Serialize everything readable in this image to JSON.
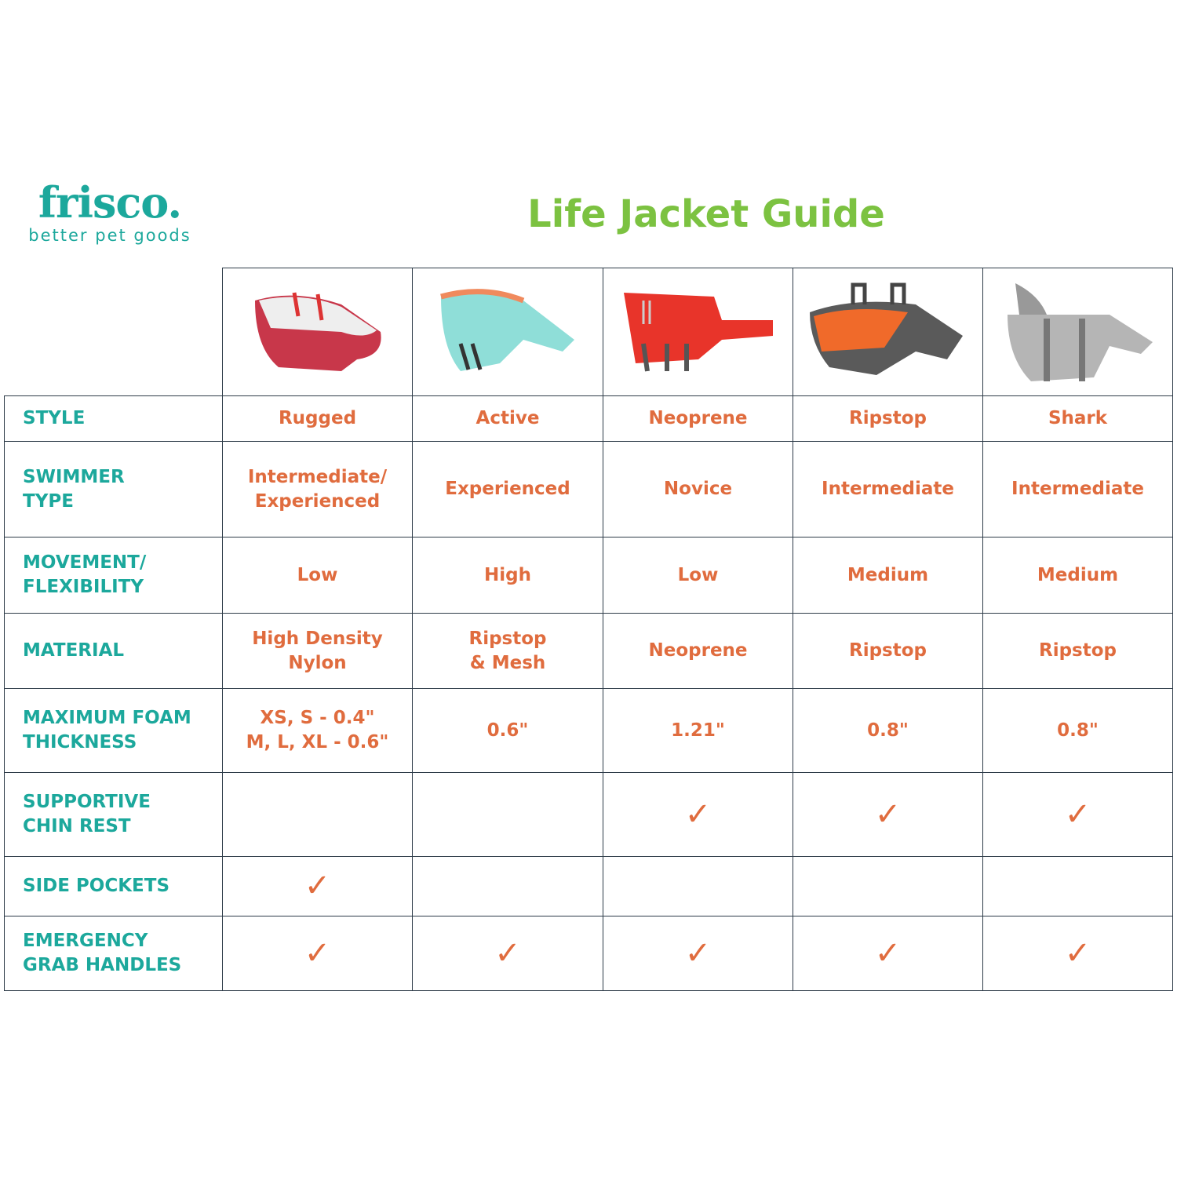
{
  "brand": {
    "name": "frisco.",
    "tagline": "better pet goods"
  },
  "title": "Life Jacket Guide",
  "colors": {
    "label": "#1ca89c",
    "value": "#e06c3e",
    "title": "#7cc241",
    "border": "#2d3b48"
  },
  "products": [
    {
      "image": "red-white-life-jacket",
      "style": "Rugged",
      "swimmer_type": "Intermediate/ Experienced",
      "movement": "Low",
      "material": "High Density Nylon",
      "foam": "XS, S - 0.4\" M, L, XL - 0.6\"",
      "chin_rest": "",
      "side_pockets": "✓",
      "grab_handles": "✓"
    },
    {
      "image": "aqua-life-jacket",
      "style": "Active",
      "swimmer_type": "Experienced",
      "movement": "High",
      "material": "Ripstop & Mesh",
      "foam": "0.6\"",
      "chin_rest": "",
      "side_pockets": "",
      "grab_handles": "✓"
    },
    {
      "image": "red-neoprene-life-jacket",
      "style": "Neoprene",
      "swimmer_type": "Novice",
      "movement": "Low",
      "material": "Neoprene",
      "foam": "1.21\"",
      "chin_rest": "✓",
      "side_pockets": "",
      "grab_handles": "✓"
    },
    {
      "image": "orange-gray-life-jacket",
      "style": "Ripstop",
      "swimmer_type": "Intermediate",
      "movement": "Medium",
      "material": "Ripstop",
      "foam": "0.8\"",
      "chin_rest": "✓",
      "side_pockets": "",
      "grab_handles": "✓"
    },
    {
      "image": "gray-shark-life-jacket",
      "style": "Shark",
      "swimmer_type": "Intermediate",
      "movement": "Medium",
      "material": "Ripstop",
      "foam": "0.8\"",
      "chin_rest": "✓",
      "side_pockets": "",
      "grab_handles": "✓"
    }
  ],
  "rows": {
    "style": "STYLE",
    "swimmer_type": "SWIMMER TYPE",
    "movement": "MOVEMENT/ FLEXIBILITY",
    "material": "MATERIAL",
    "foam": "MAXIMUM FOAM THICKNESS",
    "chin_rest": "SUPPORTIVE CHIN REST",
    "side_pockets": "SIDE POCKETS",
    "grab_handles": "EMERGENCY GRAB HANDLES"
  }
}
